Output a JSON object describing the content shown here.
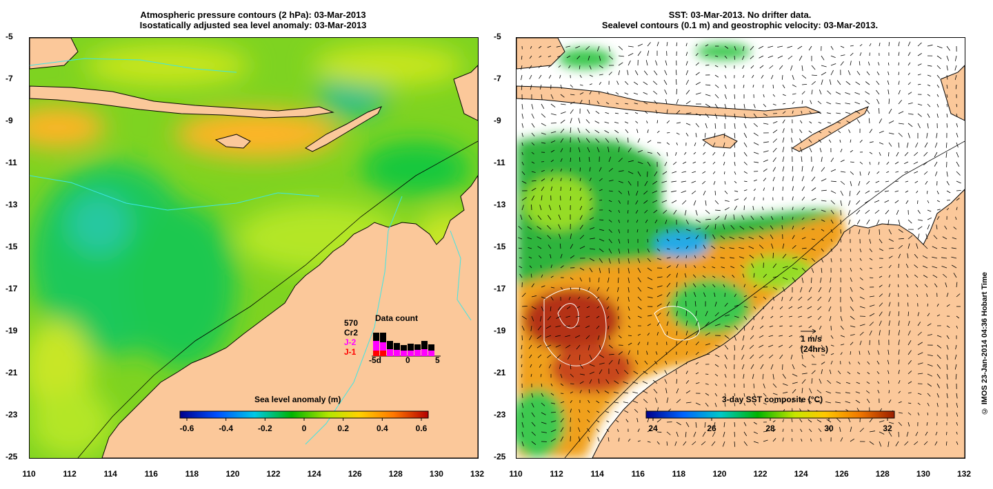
{
  "left": {
    "title_line1": "Atmospheric pressure contours (2 hPa): 03-Mar-2013",
    "title_line2": "Isostatically adjusted sea level anomaly: 03-Mar-2013",
    "colorbar_title": "Sea level anomaly (m)",
    "colorbar_ticks": [
      "-0.6",
      "-0.4",
      "-0.2",
      "0",
      "0.2",
      "0.4",
      "0.6"
    ],
    "data_count": {
      "title": "Data count",
      "total": "570",
      "labels": [
        "Cr2",
        "J-2",
        "J-1"
      ],
      "axis_ticks": [
        "-5d",
        "0",
        "5"
      ],
      "colors": {
        "Cr2": "#000000",
        "J-2": "#ff00ff",
        "J-1": "#ff0000"
      }
    }
  },
  "right": {
    "title_line1": "SST: 03-Mar-2013. No drifter data.",
    "title_line2": "Sealevel contours (0.1 m) and geostrophic velocity: 03-Mar-2013.",
    "colorbar_title": "3-day SST composite (°C)",
    "colorbar_ticks": [
      "24",
      "26",
      "28",
      "30",
      "32"
    ],
    "scale_label": "1 m/s",
    "scale_sub": "(24hrs)"
  },
  "axes": {
    "x_ticks": [
      "110",
      "112",
      "114",
      "116",
      "118",
      "120",
      "122",
      "124",
      "126",
      "128",
      "130",
      "132"
    ],
    "y_ticks": [
      "-5",
      "-7",
      "-9",
      "-11",
      "-13",
      "-15",
      "-17",
      "-19",
      "-21",
      "-23",
      "-25"
    ]
  },
  "copyright": "© IMOS 23-Jan-2014 04:36 Hobart Time",
  "colors": {
    "land": "#fbc89a",
    "sla_colormap": [
      "#00008b",
      "#0050ff",
      "#00c8e6",
      "#00b400",
      "#b4e600",
      "#ffd200",
      "#ff7800",
      "#b40000"
    ],
    "sst_colormap": [
      "#00008b",
      "#0064ff",
      "#00c8c8",
      "#00b400",
      "#c8e600",
      "#ffc800",
      "#f07800",
      "#9b1e00"
    ]
  }
}
